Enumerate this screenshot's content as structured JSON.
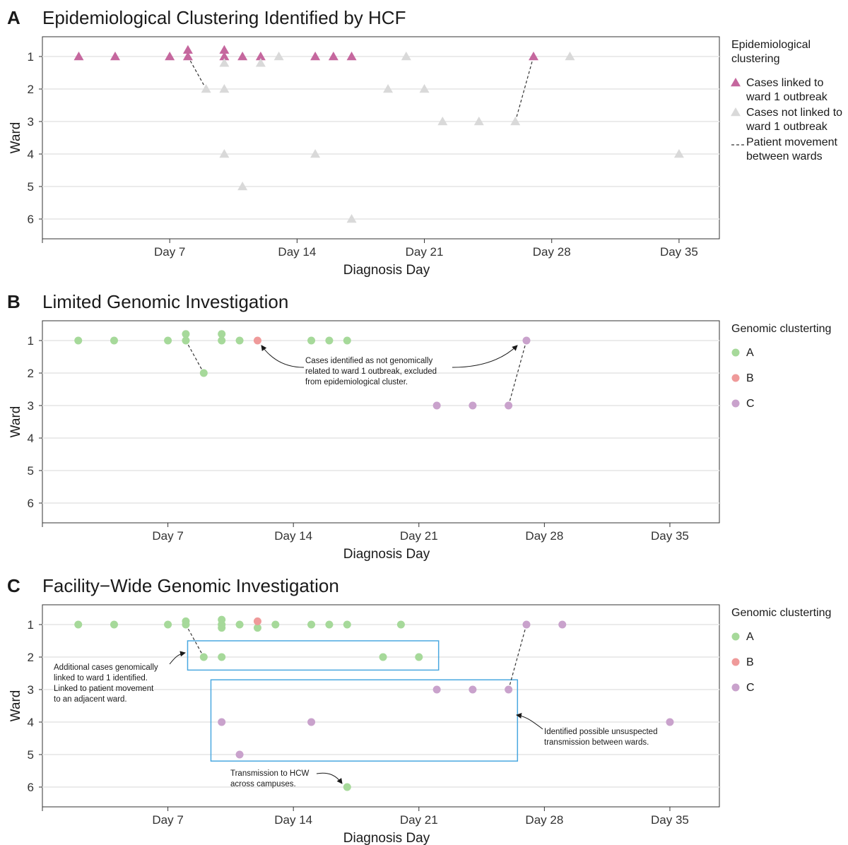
{
  "chart_data": [
    {
      "type": "scatter",
      "panel_letter": "A",
      "title": "Epidemiological Clustering Identified by HCF",
      "xlabel": "Diagnosis Day",
      "ylabel": "Ward",
      "xticks": [
        "Day 7",
        "Day 14",
        "Day 21",
        "Day 28",
        "Day 35"
      ],
      "yticks": [
        "1",
        "2",
        "3",
        "4",
        "5",
        "6"
      ],
      "legend": {
        "title_lines": [
          "Epidemiological",
          "clustering"
        ],
        "items": [
          {
            "group": "linked",
            "shape": "triangle",
            "lines": [
              "Cases linked to",
              "ward 1 outbreak"
            ]
          },
          {
            "group": "notlinked",
            "shape": "triangle",
            "lines": [
              "Cases not linked to",
              "ward 1 outbreak"
            ]
          },
          {
            "group": "movement",
            "shape": "dashed-line",
            "lines": [
              "Patient movement",
              "between wards"
            ]
          }
        ]
      },
      "colors": {
        "linked": "#c5679e",
        "notlinked": "#d9d9d9",
        "movement": "#333333"
      },
      "series": [
        {
          "name": "Cases linked to ward 1 outbreak",
          "group": "linked",
          "points": [
            {
              "x": 2,
              "y": 1
            },
            {
              "x": 4,
              "y": 1
            },
            {
              "x": 7,
              "y": 1
            },
            {
              "x": 8,
              "y": 1
            },
            {
              "x": 8,
              "y": 0.8
            },
            {
              "x": 10,
              "y": 1
            },
            {
              "x": 10,
              "y": 0.8
            },
            {
              "x": 11,
              "y": 1
            },
            {
              "x": 12,
              "y": 1
            },
            {
              "x": 15,
              "y": 1
            },
            {
              "x": 16,
              "y": 1
            },
            {
              "x": 17,
              "y": 1
            },
            {
              "x": 27,
              "y": 1
            }
          ]
        },
        {
          "name": "Cases not linked to ward 1 outbreak",
          "group": "notlinked",
          "points": [
            {
              "x": 10,
              "y": 1.2
            },
            {
              "x": 12,
              "y": 1.2
            },
            {
              "x": 13,
              "y": 1
            },
            {
              "x": 20,
              "y": 1
            },
            {
              "x": 29,
              "y": 1
            },
            {
              "x": 9,
              "y": 2
            },
            {
              "x": 10,
              "y": 2
            },
            {
              "x": 19,
              "y": 2
            },
            {
              "x": 21,
              "y": 2
            },
            {
              "x": 22,
              "y": 3
            },
            {
              "x": 24,
              "y": 3
            },
            {
              "x": 26,
              "y": 3
            },
            {
              "x": 10,
              "y": 4
            },
            {
              "x": 15,
              "y": 4
            },
            {
              "x": 35,
              "y": 4
            },
            {
              "x": 11,
              "y": 5
            },
            {
              "x": 17,
              "y": 6
            }
          ]
        }
      ],
      "movements": [
        {
          "from": {
            "x": 8,
            "y": 1
          },
          "to": {
            "x": 9,
            "y": 2
          }
        },
        {
          "from": {
            "x": 26,
            "y": 3
          },
          "to": {
            "x": 27,
            "y": 1
          }
        }
      ],
      "annotations": []
    },
    {
      "type": "scatter",
      "panel_letter": "B",
      "title": "Limited Genomic Investigation",
      "xlabel": "Diagnosis Day",
      "ylabel": "Ward",
      "xticks": [
        "Day 7",
        "Day 14",
        "Day 21",
        "Day 28",
        "Day 35"
      ],
      "yticks": [
        "1",
        "2",
        "3",
        "4",
        "5",
        "6"
      ],
      "legend": {
        "title_lines": [
          "Genomic clusterting"
        ],
        "items": [
          {
            "group": "A",
            "shape": "circle",
            "lines": [
              "A"
            ]
          },
          {
            "group": "B",
            "shape": "circle",
            "lines": [
              "B"
            ]
          },
          {
            "group": "C",
            "shape": "circle",
            "lines": [
              "C"
            ]
          }
        ]
      },
      "colors": {
        "A": "#a6d99a",
        "B": "#ef9a9a",
        "C": "#c9a2cc",
        "movement": "#333333"
      },
      "series": [
        {
          "name": "A",
          "group": "A",
          "points": [
            {
              "x": 2,
              "y": 1
            },
            {
              "x": 4,
              "y": 1
            },
            {
              "x": 7,
              "y": 1
            },
            {
              "x": 8,
              "y": 1
            },
            {
              "x": 8,
              "y": 0.8
            },
            {
              "x": 10,
              "y": 1
            },
            {
              "x": 10,
              "y": 0.8
            },
            {
              "x": 11,
              "y": 1
            },
            {
              "x": 15,
              "y": 1
            },
            {
              "x": 16,
              "y": 1
            },
            {
              "x": 17,
              "y": 1
            },
            {
              "x": 9,
              "y": 2
            }
          ]
        },
        {
          "name": "B",
          "group": "B",
          "points": [
            {
              "x": 12,
              "y": 1
            }
          ]
        },
        {
          "name": "C",
          "group": "C",
          "points": [
            {
              "x": 27,
              "y": 1
            },
            {
              "x": 22,
              "y": 3
            },
            {
              "x": 24,
              "y": 3
            },
            {
              "x": 26,
              "y": 3
            }
          ]
        }
      ],
      "movements": [
        {
          "from": {
            "x": 8,
            "y": 1
          },
          "to": {
            "x": 9,
            "y": 2
          }
        },
        {
          "from": {
            "x": 26,
            "y": 3
          },
          "to": {
            "x": 27,
            "y": 1
          }
        }
      ],
      "annotations": [
        {
          "lines": [
            "Cases identified as not genomically",
            "related to ward 1 outbreak, excluded",
            "from epidemiological cluster."
          ]
        }
      ]
    },
    {
      "type": "scatter",
      "panel_letter": "C",
      "title": "Facility−Wide Genomic Investigation",
      "xlabel": "Diagnosis Day",
      "ylabel": "Ward",
      "xticks": [
        "Day 7",
        "Day 14",
        "Day 21",
        "Day 28",
        "Day 35"
      ],
      "yticks": [
        "1",
        "2",
        "3",
        "4",
        "5",
        "6"
      ],
      "legend": {
        "title_lines": [
          "Genomic clusterting"
        ],
        "items": [
          {
            "group": "A",
            "shape": "circle",
            "lines": [
              "A"
            ]
          },
          {
            "group": "B",
            "shape": "circle",
            "lines": [
              "B"
            ]
          },
          {
            "group": "C",
            "shape": "circle",
            "lines": [
              "C"
            ]
          }
        ]
      },
      "colors": {
        "A": "#a6d99a",
        "B": "#ef9a9a",
        "C": "#c9a2cc",
        "movement": "#333333",
        "box": "#4aa8e0"
      },
      "series": [
        {
          "name": "A",
          "group": "A",
          "points": [
            {
              "x": 2,
              "y": 1
            },
            {
              "x": 4,
              "y": 1
            },
            {
              "x": 7,
              "y": 1
            },
            {
              "x": 8,
              "y": 1
            },
            {
              "x": 8,
              "y": 0.9
            },
            {
              "x": 10,
              "y": 1
            },
            {
              "x": 10,
              "y": 0.85
            },
            {
              "x": 10,
              "y": 1.1
            },
            {
              "x": 11,
              "y": 1
            },
            {
              "x": 12,
              "y": 1.1
            },
            {
              "x": 13,
              "y": 1
            },
            {
              "x": 15,
              "y": 1
            },
            {
              "x": 16,
              "y": 1
            },
            {
              "x": 17,
              "y": 1
            },
            {
              "x": 20,
              "y": 1
            },
            {
              "x": 9,
              "y": 2
            },
            {
              "x": 10,
              "y": 2
            },
            {
              "x": 19,
              "y": 2
            },
            {
              "x": 21,
              "y": 2
            },
            {
              "x": 17,
              "y": 6
            }
          ]
        },
        {
          "name": "B",
          "group": "B",
          "points": [
            {
              "x": 12,
              "y": 0.9
            }
          ]
        },
        {
          "name": "C",
          "group": "C",
          "points": [
            {
              "x": 27,
              "y": 1
            },
            {
              "x": 29,
              "y": 1
            },
            {
              "x": 22,
              "y": 3
            },
            {
              "x": 24,
              "y": 3
            },
            {
              "x": 26,
              "y": 3
            },
            {
              "x": 10,
              "y": 4
            },
            {
              "x": 15,
              "y": 4
            },
            {
              "x": 35,
              "y": 4
            },
            {
              "x": 11,
              "y": 5
            }
          ]
        }
      ],
      "movements": [
        {
          "from": {
            "x": 8,
            "y": 1
          },
          "to": {
            "x": 9,
            "y": 2
          }
        },
        {
          "from": {
            "x": 26,
            "y": 3
          },
          "to": {
            "x": 27,
            "y": 1
          }
        }
      ],
      "boxes": [
        {
          "x0": 8.1,
          "x1": 22.1,
          "y0": 1.5,
          "y1": 2.4
        },
        {
          "x0": 9.4,
          "x1": 26.5,
          "y0": 2.7,
          "y1": 5.2
        }
      ],
      "annotations": [
        {
          "lines": [
            "Additional cases genomically",
            "linked to ward 1 identified.",
            "Linked to patient movement",
            "to an adjacent ward."
          ]
        },
        {
          "lines": [
            "Identified possible unsuspected",
            "transmission between wards."
          ]
        },
        {
          "lines": [
            "Transmission to HCW",
            "across campuses."
          ]
        }
      ]
    }
  ]
}
